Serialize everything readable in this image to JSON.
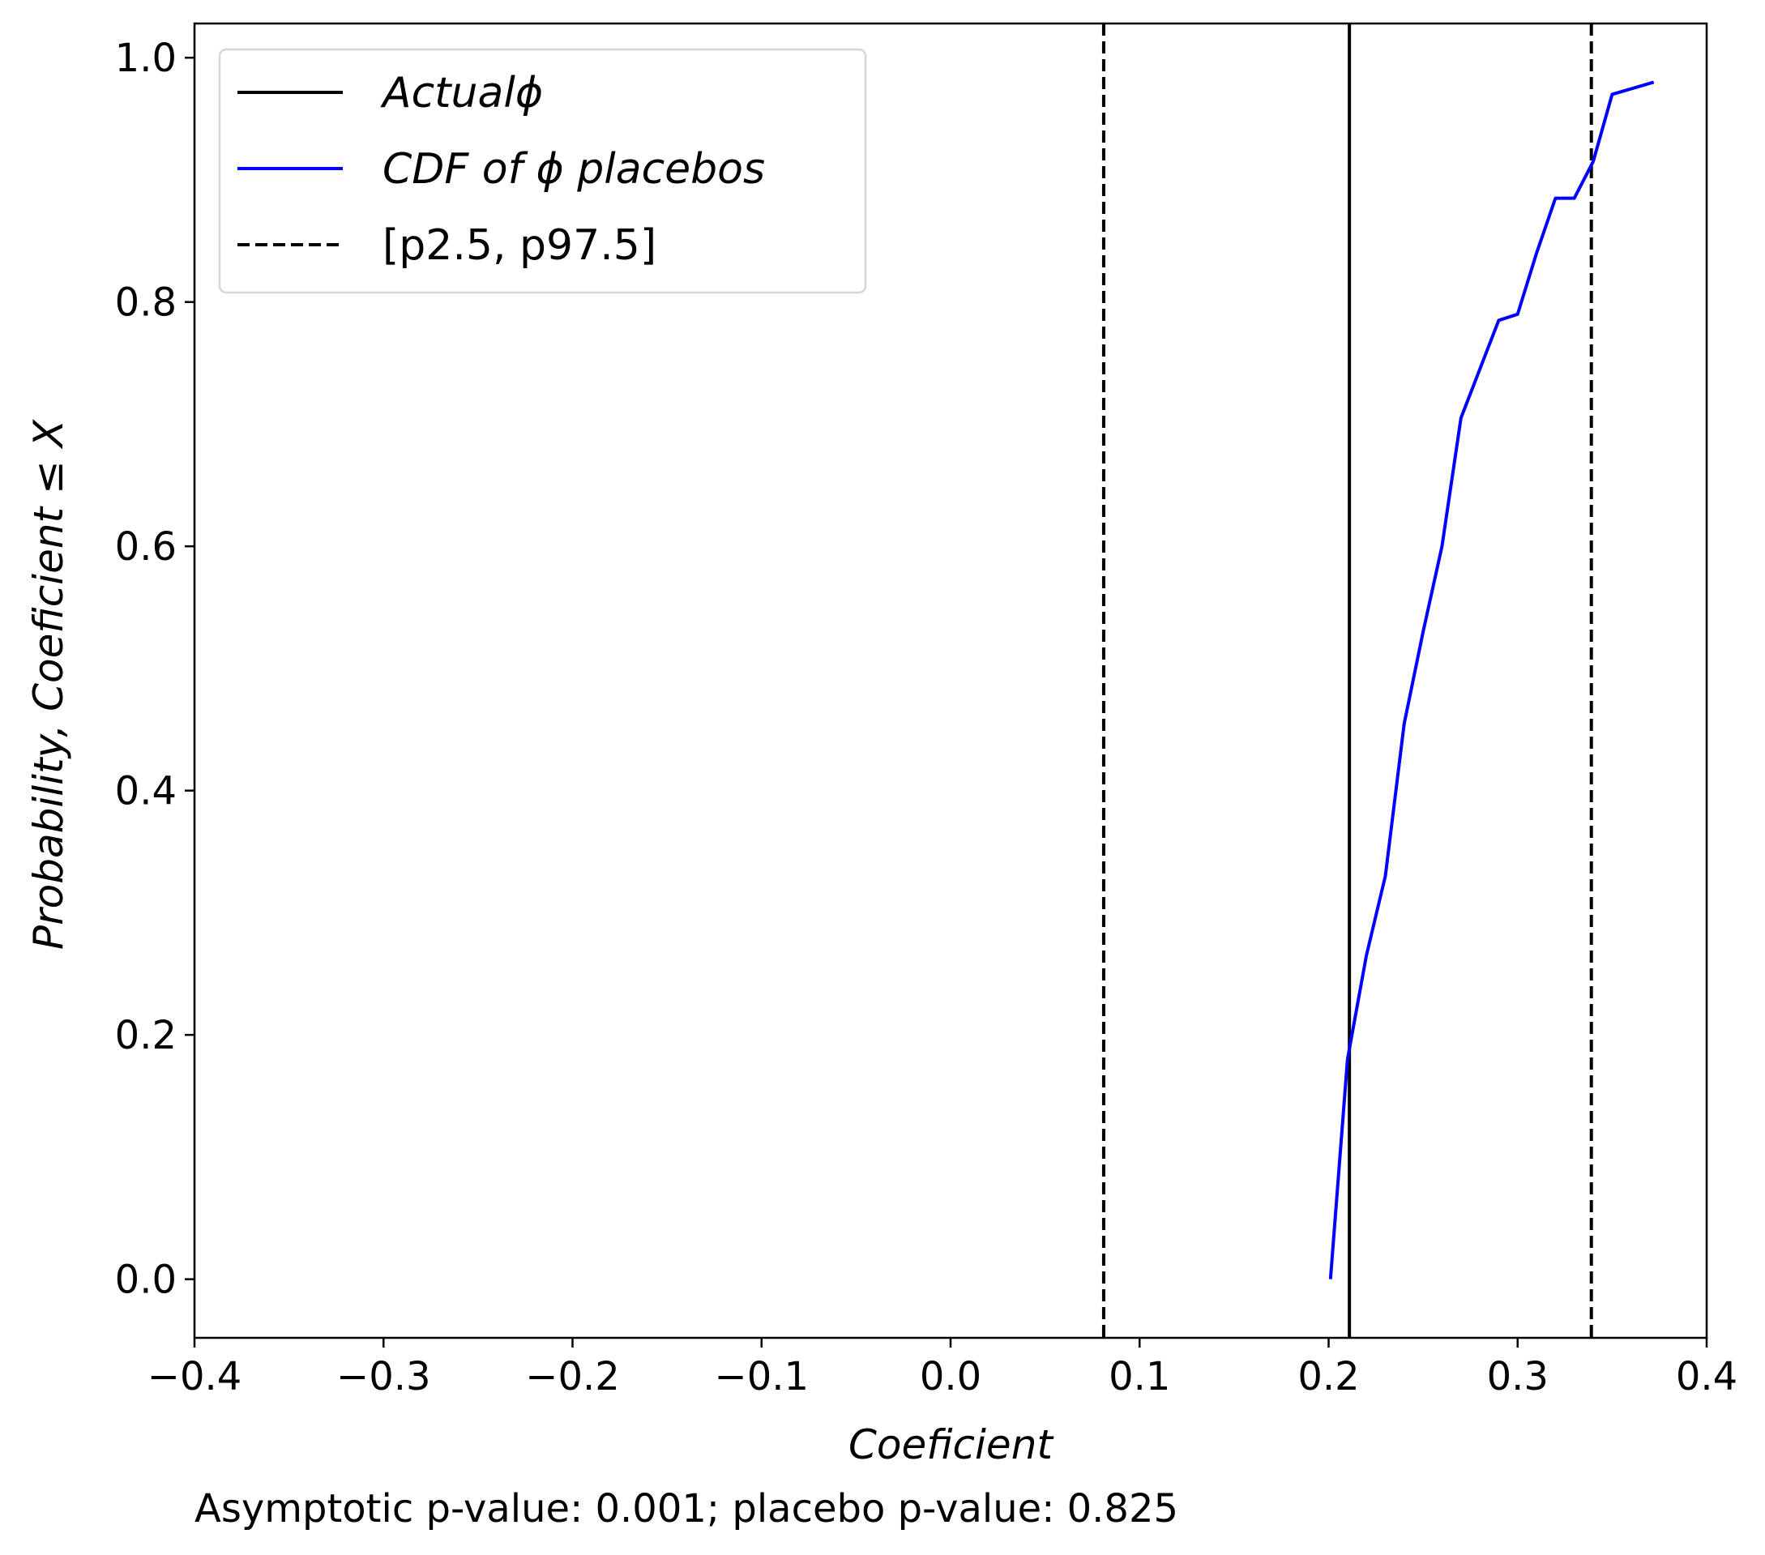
{
  "chart_data": {
    "type": "line",
    "xlabel": "Coeficient",
    "ylabel": "Probability, Coeficient ≤ X",
    "xlim": [
      -0.4,
      0.4
    ],
    "ylim": [
      -0.048,
      1.028
    ],
    "xticks": [
      -0.4,
      -0.3,
      -0.2,
      -0.1,
      0.0,
      0.1,
      0.2,
      0.3,
      0.4
    ],
    "xtick_labels": [
      "−0.4",
      "−0.3",
      "−0.2",
      "−0.1",
      "0.0",
      "0.1",
      "0.2",
      "0.3",
      "0.4"
    ],
    "yticks": [
      0.0,
      0.2,
      0.4,
      0.6,
      0.8,
      1.0
    ],
    "ytick_labels": [
      "0.0",
      "0.2",
      "0.4",
      "0.6",
      "0.8",
      "1.0"
    ],
    "grid": false,
    "legend_position": "top-left",
    "series": [
      {
        "name": "CDF of ϕ placebos",
        "color": "#0000ff",
        "style": "solid",
        "x": [
          0.201,
          0.21,
          0.22,
          0.23,
          0.24,
          0.25,
          0.26,
          0.27,
          0.28,
          0.29,
          0.3,
          0.31,
          0.32,
          0.33,
          0.34,
          0.35,
          0.372
        ],
        "y": [
          0.0,
          0.18,
          0.265,
          0.33,
          0.455,
          0.53,
          0.6,
          0.705,
          0.745,
          0.785,
          0.79,
          0.84,
          0.885,
          0.885,
          0.915,
          0.97,
          0.98
        ]
      }
    ],
    "vlines": [
      {
        "name": "Actualϕ",
        "x": 0.211,
        "color": "#000000",
        "style": "solid"
      },
      {
        "name": "[p2.5, p97.5]",
        "x": 0.081,
        "color": "#000000",
        "style": "dashed"
      },
      {
        "name": "[p2.5, p97.5]",
        "x": 0.339,
        "color": "#000000",
        "style": "dashed"
      }
    ],
    "legend": [
      {
        "label": "Actualϕ",
        "color": "#000000",
        "style": "solid",
        "italic": true
      },
      {
        "label": "CDF of ϕ placebos",
        "color": "#0000ff",
        "style": "solid",
        "italic": true
      },
      {
        "label": "[p2.5, p97.5]",
        "color": "#000000",
        "style": "dashed",
        "italic": false
      }
    ],
    "footer_note": "Asymptotic p-value: 0.001; placebo p-value: 0.825"
  }
}
